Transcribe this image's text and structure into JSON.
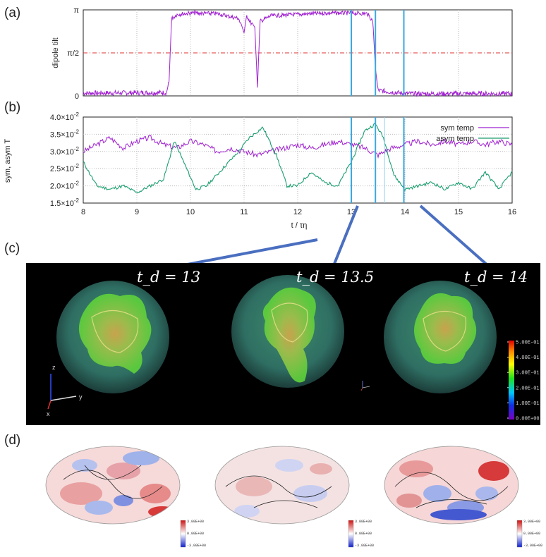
{
  "panels": {
    "a": "(a)",
    "b": "(b)",
    "c": "(c)",
    "d": "(d)"
  },
  "chart_data": [
    {
      "type": "line",
      "id": "a",
      "ylabel": "dipole tilt",
      "yticks": [
        "0",
        "π/2",
        "π"
      ],
      "ylim": [
        0,
        3.14159
      ],
      "xlim": [
        8,
        16
      ],
      "grid": true,
      "color": "#a020d0",
      "reference_line": {
        "y": 1.5708,
        "color": "#e03030"
      },
      "series": [
        {
          "values": [
            [
              8.0,
              0.1
            ],
            [
              9.55,
              0.12
            ],
            [
              9.6,
              0.5
            ],
            [
              9.65,
              2.9
            ],
            [
              9.75,
              3.05
            ],
            [
              10.0,
              3.1
            ],
            [
              10.5,
              3.08
            ],
            [
              10.9,
              2.9
            ],
            [
              11.0,
              2.3
            ],
            [
              11.05,
              3.0
            ],
            [
              11.2,
              2.5
            ],
            [
              11.25,
              0.35
            ],
            [
              11.3,
              2.8
            ],
            [
              11.5,
              3.0
            ],
            [
              12.0,
              3.05
            ],
            [
              12.5,
              3.1
            ],
            [
              13.0,
              3.1
            ],
            [
              13.3,
              3.08
            ],
            [
              13.4,
              2.8
            ],
            [
              13.45,
              1.0
            ],
            [
              13.5,
              0.2
            ],
            [
              14.0,
              0.08
            ],
            [
              15.0,
              0.08
            ],
            [
              16.0,
              0.08
            ]
          ]
        }
      ],
      "markers_x": [
        13.0,
        13.45,
        13.98
      ]
    },
    {
      "type": "line",
      "id": "b",
      "ylabel": "sym, asym T",
      "xlabel": "t / τη",
      "xlim": [
        8,
        16
      ],
      "ylim": [
        0.015,
        0.04
      ],
      "xticks": [
        "8",
        "9",
        "10",
        "11",
        "12",
        "13",
        "14",
        "15",
        "16"
      ],
      "yticks": [
        {
          "value": 0.015,
          "mant": "1.5",
          "exp": "-2"
        },
        {
          "value": 0.02,
          "mant": "2.0",
          "exp": "-2"
        },
        {
          "value": 0.025,
          "mant": "2.5",
          "exp": "-2"
        },
        {
          "value": 0.03,
          "mant": "3.0",
          "exp": "-2"
        },
        {
          "value": 0.035,
          "mant": "3.5",
          "exp": "-2"
        },
        {
          "value": 0.04,
          "mant": "4.0",
          "exp": "-2"
        }
      ],
      "tick_mult": "×10",
      "grid": true,
      "legend": "top-right",
      "series": [
        {
          "name": "sym temp",
          "color": "#a020d0",
          "values": [
            [
              8.0,
              0.03
            ],
            [
              8.25,
              0.032
            ],
            [
              8.5,
              0.034
            ],
            [
              8.75,
              0.031
            ],
            [
              9.0,
              0.033
            ],
            [
              9.25,
              0.034
            ],
            [
              9.5,
              0.032
            ],
            [
              9.75,
              0.031
            ],
            [
              10.0,
              0.033
            ],
            [
              10.25,
              0.032
            ],
            [
              10.5,
              0.03
            ],
            [
              10.75,
              0.031
            ],
            [
              11.0,
              0.03
            ],
            [
              11.25,
              0.029
            ],
            [
              11.5,
              0.03
            ],
            [
              11.75,
              0.031
            ],
            [
              12.0,
              0.032
            ],
            [
              12.25,
              0.031
            ],
            [
              12.5,
              0.032
            ],
            [
              12.75,
              0.033
            ],
            [
              13.0,
              0.032
            ],
            [
              13.25,
              0.031
            ],
            [
              13.5,
              0.029
            ],
            [
              13.75,
              0.031
            ],
            [
              14.0,
              0.032
            ],
            [
              14.25,
              0.033
            ],
            [
              14.5,
              0.032
            ],
            [
              14.75,
              0.033
            ],
            [
              15.0,
              0.032
            ],
            [
              15.25,
              0.033
            ],
            [
              15.5,
              0.032
            ],
            [
              15.75,
              0.033
            ],
            [
              16.0,
              0.032
            ]
          ]
        },
        {
          "name": "asym temp",
          "color": "#1a9e6e",
          "values": [
            [
              8.0,
              0.027
            ],
            [
              8.25,
              0.02
            ],
            [
              8.5,
              0.019
            ],
            [
              8.75,
              0.02
            ],
            [
              9.0,
              0.018
            ],
            [
              9.25,
              0.02
            ],
            [
              9.5,
              0.022
            ],
            [
              9.7,
              0.033
            ],
            [
              9.9,
              0.026
            ],
            [
              10.1,
              0.019
            ],
            [
              10.3,
              0.02
            ],
            [
              10.6,
              0.025
            ],
            [
              10.9,
              0.03
            ],
            [
              11.1,
              0.034
            ],
            [
              11.35,
              0.037
            ],
            [
              11.6,
              0.029
            ],
            [
              11.8,
              0.02
            ],
            [
              12.0,
              0.02
            ],
            [
              12.25,
              0.024
            ],
            [
              12.5,
              0.021
            ],
            [
              12.75,
              0.02
            ],
            [
              13.0,
              0.027
            ],
            [
              13.25,
              0.036
            ],
            [
              13.45,
              0.038
            ],
            [
              13.6,
              0.034
            ],
            [
              13.8,
              0.023
            ],
            [
              14.0,
              0.019
            ],
            [
              14.25,
              0.02
            ],
            [
              14.5,
              0.021
            ],
            [
              14.75,
              0.019
            ],
            [
              15.0,
              0.021
            ],
            [
              15.25,
              0.019
            ],
            [
              15.5,
              0.024
            ],
            [
              15.75,
              0.019
            ],
            [
              16.0,
              0.024
            ]
          ]
        }
      ],
      "markers_x": [
        13.0,
        13.45,
        13.98
      ]
    }
  ],
  "volumes": [
    {
      "label": "t_d = 13"
    },
    {
      "label": "t_d = 13.5"
    },
    {
      "label": "t_d = 14"
    }
  ],
  "colorbar_c": {
    "ticks": [
      "5.00E-01",
      "4.00E-01",
      "3.00E-01",
      "2.00E-01",
      "1.00E-01",
      "0.00E+00"
    ]
  },
  "axes_triad": {
    "z": "z",
    "y": "y",
    "x": "x"
  },
  "colorbar_d": {
    "ticks": [
      "3.00E+00",
      "0.00E+00",
      "-3.00E+00"
    ]
  }
}
